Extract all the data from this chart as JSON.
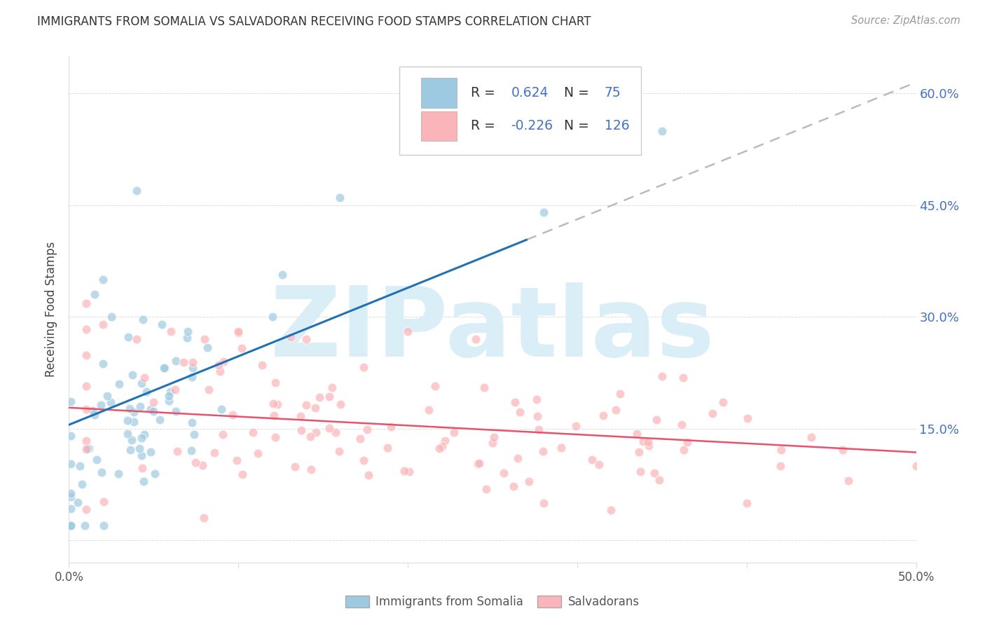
{
  "title": "IMMIGRANTS FROM SOMALIA VS SALVADORAN RECEIVING FOOD STAMPS CORRELATION CHART",
  "source": "Source: ZipAtlas.com",
  "ylabel": "Receiving Food Stamps",
  "xlim": [
    0.0,
    0.5
  ],
  "ylim": [
    -0.03,
    0.65
  ],
  "ytick_vals": [
    0.0,
    0.15,
    0.3,
    0.45,
    0.6
  ],
  "ytick_labels_right": [
    "",
    "15.0%",
    "30.0%",
    "45.0%",
    "60.0%"
  ],
  "xtick_vals": [
    0.0,
    0.1,
    0.2,
    0.3,
    0.4,
    0.5
  ],
  "xtick_labels": [
    "0.0%",
    "",
    "",
    "",
    "",
    "50.0%"
  ],
  "somalia_R": 0.624,
  "somalia_N": 75,
  "salvadoran_R": -0.226,
  "salvadoran_N": 126,
  "somalia_color": "#9ecae1",
  "salvadoran_color": "#fbb4b9",
  "somalia_line_color": "#2171b5",
  "salvadoran_line_color": "#e8526a",
  "dashed_line_color": "#bbbbbb",
  "background_color": "#ffffff",
  "watermark_text": "ZIPatlas",
  "watermark_color": "#daeef8",
  "legend_label_somalia": "Immigrants from Somalia",
  "legend_label_salvadoran": "Salvadorans",
  "tick_color": "#4472C4",
  "title_color": "#333333",
  "source_color": "#999999",
  "grid_color": "#dddddd",
  "ylabel_color": "#444444",
  "rn_color": "#4472C4",
  "legend_text_color": "#333333",
  "somalia_line_y0": 0.155,
  "somalia_line_y1": 0.615,
  "salvadoran_line_y0": 0.178,
  "salvadoran_line_y1": 0.118
}
